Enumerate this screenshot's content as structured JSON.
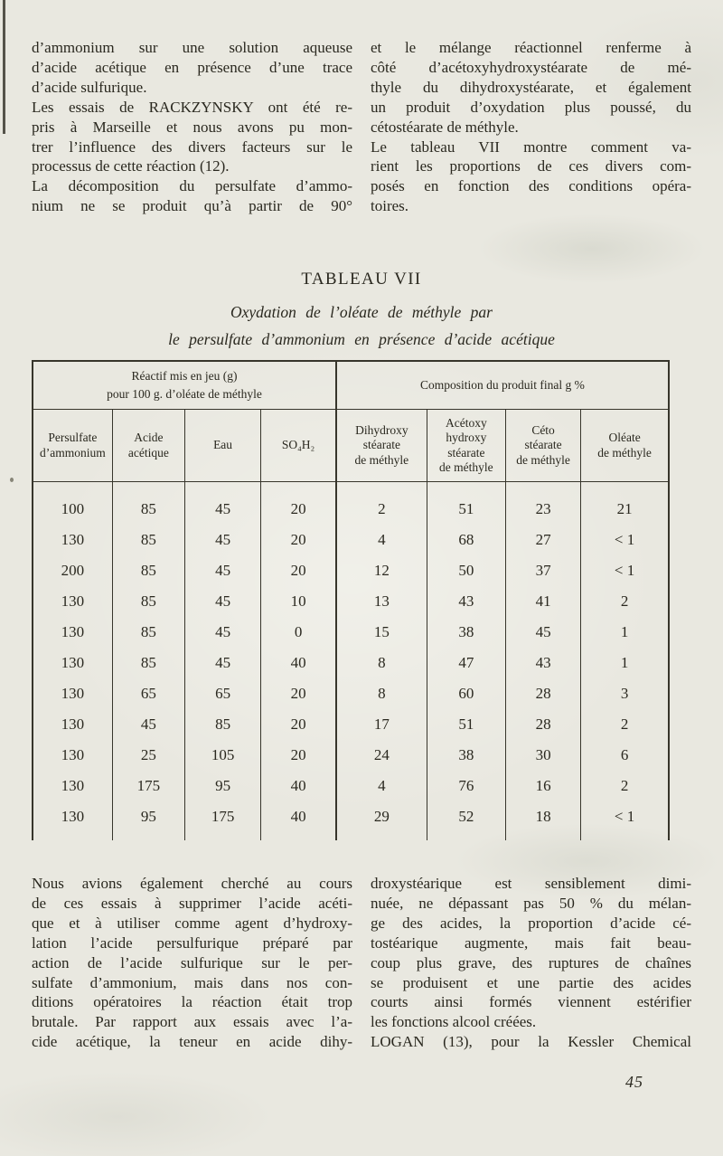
{
  "page": {
    "number": "45"
  },
  "colors": {
    "paper": "#e9e8e0",
    "ink": "#2a281f",
    "rule": "#37352b"
  },
  "top_text": {
    "left_lines": [
      "d’ammonium sur une solution aqueuse",
      "d’acide acétique en présence d’une trace",
      "d’acide sulfurique.",
      "Les essais de RACKZYNSKY ont été re-",
      "pris à Marseille et nous avons pu mon-",
      "trer l’influence des divers facteurs sur le",
      "processus de cette réaction (12).",
      "La décomposition du persulfate d’ammo-",
      "nium ne se produit qu’à partir de 90°"
    ],
    "right_lines": [
      "et le mélange réactionnel renferme à",
      "côté d’acétoxyhydroxystéarate de mé-",
      "thyle du dihydroxystéarate, et également",
      "un produit d’oxydation plus poussé, du",
      "cétostéarate de méthyle.",
      "Le tableau VII montre comment va-",
      "rient les proportions de ces divers com-",
      "posés en fonction des conditions opéra-",
      "toires."
    ]
  },
  "table_block": {
    "title": "TABLEAU VII",
    "subtitle_line1": "Oxydation de l’oléate de méthyle par",
    "subtitle_line2": "le persulfate d’ammonium en présence d’acide acétique",
    "group_headers": [
      "Réactif mis en jeu (g)\npour 100 g. d’oléate de méthyle",
      "Composition du produit final g %"
    ],
    "column_headers": [
      "Persulfate\nd’ammonium",
      "Acide\nacétique",
      "Eau",
      "SO₄H₂",
      "Dihydroxy\nstéarate\nde méthyle",
      "Acétoxy\nhydroxy\nstéarate\nde méthyle",
      "Céto\nstéarate\nde méthyle",
      "Oléate\nde méthyle"
    ],
    "rows": [
      [
        "100",
        "85",
        "45",
        "20",
        "2",
        "51",
        "23",
        "21"
      ],
      [
        "130",
        "85",
        "45",
        "20",
        "4",
        "68",
        "27",
        "< 1"
      ],
      [
        "200",
        "85",
        "45",
        "20",
        "12",
        "50",
        "37",
        "< 1"
      ],
      [
        "130",
        "85",
        "45",
        "10",
        "13",
        "43",
        "41",
        "2"
      ],
      [
        "130",
        "85",
        "45",
        "0",
        "15",
        "38",
        "45",
        "1"
      ],
      [
        "130",
        "85",
        "45",
        "40",
        "8",
        "47",
        "43",
        "1"
      ],
      [
        "130",
        "65",
        "65",
        "20",
        "8",
        "60",
        "28",
        "3"
      ],
      [
        "130",
        "45",
        "85",
        "20",
        "17",
        "51",
        "28",
        "2"
      ],
      [
        "130",
        "25",
        "105",
        "20",
        "24",
        "38",
        "30",
        "6"
      ],
      [
        "130",
        "175",
        "95",
        "40",
        "4",
        "76",
        "16",
        "2"
      ],
      [
        "130",
        "95",
        "175",
        "40",
        "29",
        "52",
        "18",
        "< 1"
      ]
    ]
  },
  "bottom_text": {
    "left_lines": [
      "Nous avions également cherché au cours",
      "de ces essais à supprimer l’acide acéti-",
      "que et à utiliser comme agent d’hydroxy-",
      "lation l’acide persulfurique préparé par",
      "action de l’acide sulfurique sur le per-",
      "sulfate d’ammonium, mais dans nos con-",
      "ditions opératoires la réaction était trop",
      "brutale. Par rapport aux essais avec l’a-",
      "cide acétique, la teneur en acide dihy-"
    ],
    "right_lines": [
      "droxystéarique est sensiblement dimi-",
      "nuée, ne dépassant pas 50 % du mélan-",
      "ge des acides, la proportion d’acide cé-",
      "tostéarique augmente, mais fait beau-",
      "coup plus grave, des ruptures de chaînes",
      "se produisent et une partie des acides",
      "courts ainsi formés viennent estérifier",
      "les fonctions alcool créées.",
      "LOGAN (13), pour la Kessler Chemical"
    ]
  }
}
